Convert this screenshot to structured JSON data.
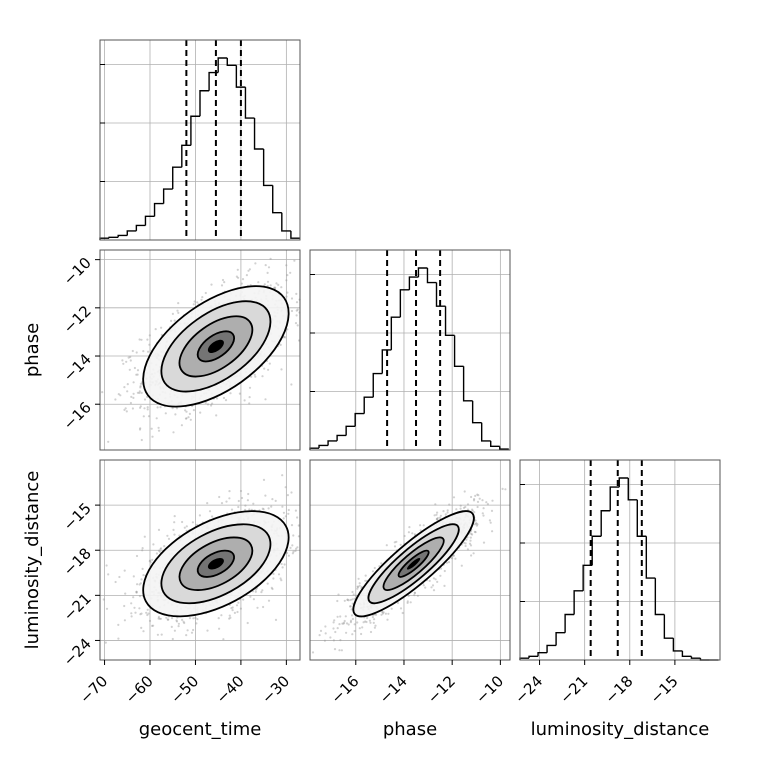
{
  "chart_data": {
    "type": "corner",
    "parameters": [
      "geocent_time",
      "phase",
      "luminosity_distance"
    ],
    "axis_labels": {
      "geocent_time": "geocent_time",
      "phase": "phase",
      "luminosity_distance": "luminosity_distance"
    },
    "ranges": {
      "geocent_time": [
        -71,
        -27
      ],
      "phase": [
        -17.9,
        -9.6
      ],
      "luminosity_distance": [
        -25.3,
        -12.0
      ]
    },
    "ticks": {
      "geocent_time": [
        -70,
        -60,
        -50,
        -40,
        -30
      ],
      "phase": [
        -16,
        -14,
        -12,
        -10
      ],
      "luminosity_distance": [
        -24,
        -21,
        -18,
        -15
      ]
    },
    "tick_labels": {
      "geocent_time": [
        "−70",
        "−60",
        "−50",
        "−40",
        "−30"
      ],
      "phase": [
        "−16",
        "−14",
        "−12",
        "−10"
      ],
      "luminosity_distance": [
        "−24",
        "−21",
        "−18",
        "−15"
      ]
    },
    "quantiles": {
      "geocent_time": [
        -52,
        -45.5,
        -40
      ],
      "phase": [
        -14.7,
        -13.5,
        -12.5
      ],
      "luminosity_distance": [
        -20.6,
        -18.8,
        -17.2
      ]
    },
    "histograms": {
      "geocent_time": {
        "edges": [
          -71,
          -69,
          -67,
          -65,
          -63,
          -61,
          -59,
          -57,
          -55,
          -53,
          -51,
          -49,
          -47,
          -45,
          -43,
          -41,
          -39,
          -37,
          -35,
          -33,
          -31,
          -29,
          -27
        ],
        "counts": [
          0.01,
          0.015,
          0.025,
          0.05,
          0.08,
          0.13,
          0.2,
          0.28,
          0.4,
          0.52,
          0.68,
          0.82,
          0.92,
          1.0,
          0.96,
          0.84,
          0.67,
          0.5,
          0.3,
          0.15,
          0.05,
          0.01
        ]
      },
      "phase": {
        "edges": [
          -17.9,
          -17.525,
          -17.15,
          -16.775,
          -16.4,
          -16.025,
          -15.65,
          -15.275,
          -14.9,
          -14.525,
          -14.15,
          -13.775,
          -13.4,
          -13.025,
          -12.65,
          -12.275,
          -11.9,
          -11.525,
          -11.15,
          -10.775,
          -10.4,
          -10.025,
          -9.65
        ],
        "counts": [
          0.01,
          0.025,
          0.05,
          0.08,
          0.13,
          0.2,
          0.29,
          0.42,
          0.55,
          0.73,
          0.88,
          0.95,
          1.0,
          0.92,
          0.79,
          0.63,
          0.46,
          0.27,
          0.15,
          0.05,
          0.02,
          0.005
        ]
      },
      "luminosity_distance": {
        "edges": [
          -25.3,
          -24.7,
          -24.1,
          -23.5,
          -22.9,
          -22.3,
          -21.7,
          -21.1,
          -20.5,
          -19.9,
          -19.3,
          -18.7,
          -18.1,
          -17.5,
          -16.9,
          -16.3,
          -15.7,
          -15.1,
          -14.5,
          -13.9,
          -13.3,
          -12.7,
          -12.1
        ],
        "counts": [
          0.01,
          0.02,
          0.04,
          0.08,
          0.15,
          0.25,
          0.38,
          0.52,
          0.68,
          0.82,
          0.95,
          1.0,
          0.88,
          0.68,
          0.45,
          0.25,
          0.12,
          0.05,
          0.02,
          0.01,
          0.0,
          0.0
        ]
      }
    },
    "pairs": [
      {
        "x": "geocent_time",
        "y": "phase",
        "mean": [
          -45.5,
          -13.6
        ],
        "sd": [
          8.0,
          1.25
        ],
        "corr": 0.55
      },
      {
        "x": "geocent_time",
        "y": "luminosity_distance",
        "mean": [
          -45.5,
          -18.9
        ],
        "sd": [
          8.0,
          1.75
        ],
        "corr": 0.5
      },
      {
        "x": "phase",
        "y": "luminosity_distance",
        "mean": [
          -13.6,
          -18.9
        ],
        "sd": [
          1.25,
          1.75
        ],
        "corr": 0.87
      }
    ],
    "contour_levels": [
      0.5,
      1.0,
      1.5,
      2.0
    ],
    "grid": true,
    "colors": {
      "ink": "#000000",
      "grid": "#b0b0b0",
      "scatter": "#9a9a9a"
    }
  }
}
